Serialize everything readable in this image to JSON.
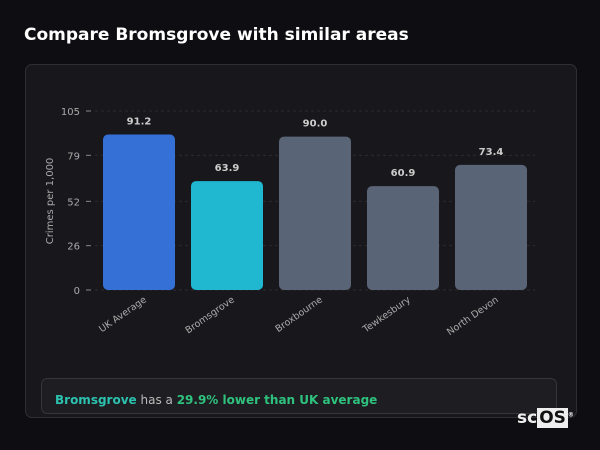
{
  "header": {
    "title": "Compare Bromsgrove with similar areas"
  },
  "chart_data": {
    "type": "bar",
    "categories": [
      "UK Average",
      "Bromsgrove",
      "Broxbourne",
      "Tewkesbury",
      "North Devon"
    ],
    "values": [
      91.2,
      63.9,
      90.0,
      60.9,
      73.4
    ],
    "value_labels": [
      "91.2",
      "63.9",
      "90.0",
      "60.9",
      "73.4"
    ],
    "colors": [
      "#3470d6",
      "#1fb8d0",
      "#5a6477",
      "#5a6477",
      "#5a6477"
    ],
    "ylabel": "Crimes per 1,000",
    "xlabel": "",
    "ylim": [
      0,
      105
    ],
    "yticks": [
      0,
      26,
      52,
      79,
      105
    ],
    "grid": true
  },
  "summary": {
    "area": "Bromsgrove",
    "middle": " has a ",
    "comparison": "29.9% lower than UK average"
  },
  "logo": {
    "text": "scOS"
  }
}
